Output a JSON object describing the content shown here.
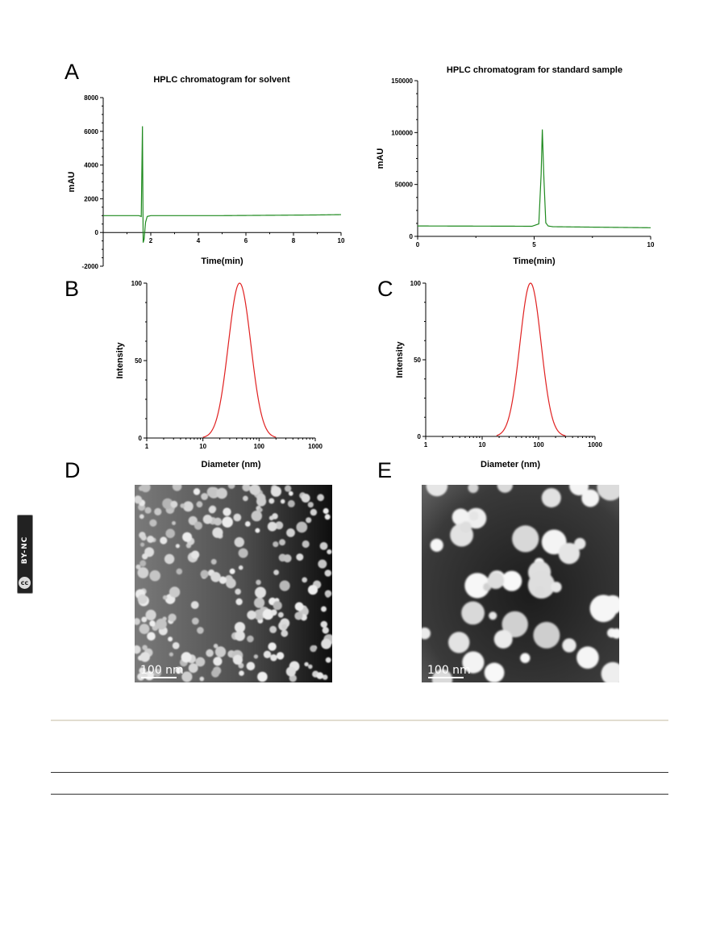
{
  "panels": {
    "A": "A",
    "B": "B",
    "C": "C",
    "D": "D",
    "E": "E"
  },
  "license_badge": {
    "icon": "cc-by-nc-icon",
    "text": "BY-NC",
    "cc": "cc"
  },
  "colors": {
    "hplc_line": "#1f8a1f",
    "dls_line": "#e02020",
    "axis": "#000000"
  },
  "chart_data": [
    {
      "type": "line",
      "title": "HPLC chromatogram for solvent",
      "xlabel": "Time(min)",
      "ylabel": "mAU",
      "xlim": [
        0,
        10
      ],
      "ylim": [
        -2000,
        8000
      ],
      "xticks": [
        2,
        4,
        6,
        8,
        10
      ],
      "yticks": [
        -2000,
        0,
        2000,
        4000,
        6000,
        8000
      ],
      "series": [
        {
          "x": [
            0,
            1.5,
            1.6,
            1.65,
            1.68,
            1.72,
            1.78,
            1.85,
            2.0,
            3,
            5,
            7,
            9,
            10
          ],
          "y": [
            1000,
            1000,
            950,
            6300,
            -600,
            -400,
            600,
            950,
            1000,
            1000,
            1000,
            1020,
            1040,
            1060
          ]
        }
      ]
    },
    {
      "type": "line",
      "title": "HPLC chromatogram for standard sample",
      "xlabel": "Time(min)",
      "ylabel": "mAU",
      "xlim": [
        0,
        10
      ],
      "ylim": [
        0,
        150000
      ],
      "xticks": [
        0,
        5,
        10
      ],
      "yticks": [
        0,
        50000,
        100000,
        150000
      ],
      "series": [
        {
          "x": [
            0,
            4,
            4.9,
            5.2,
            5.3,
            5.35,
            5.42,
            5.5,
            5.6,
            5.8,
            7,
            10
          ],
          "y": [
            10000,
            9800,
            9700,
            12000,
            60000,
            103000,
            55000,
            13000,
            10000,
            9300,
            9000,
            8300
          ]
        }
      ]
    },
    {
      "type": "line",
      "title": "",
      "xlabel": "Diameter (nm)",
      "ylabel": "Intensity",
      "xscale": "log",
      "xlim": [
        1,
        1000
      ],
      "ylim": [
        0,
        100
      ],
      "xticks": [
        1,
        10,
        100,
        1000
      ],
      "yticks": [
        0,
        50,
        100
      ],
      "series": [
        {
          "peak_x": 45,
          "peak_y": 100,
          "x_range": [
            10,
            200
          ]
        }
      ]
    },
    {
      "type": "line",
      "title": "",
      "xlabel": "Diameter (nm)",
      "ylabel": "Intensity",
      "xscale": "log",
      "xlim": [
        1,
        1000
      ],
      "ylim": [
        0,
        100
      ],
      "xticks": [
        1,
        10,
        100,
        1000
      ],
      "yticks": [
        0,
        50,
        100
      ],
      "series": [
        {
          "peak_x": 72,
          "peak_y": 100,
          "x_range": [
            18,
            300
          ]
        }
      ]
    }
  ],
  "tem_images": [
    {
      "scale_label": "100 nm"
    },
    {
      "scale_label": "100 nm"
    }
  ]
}
